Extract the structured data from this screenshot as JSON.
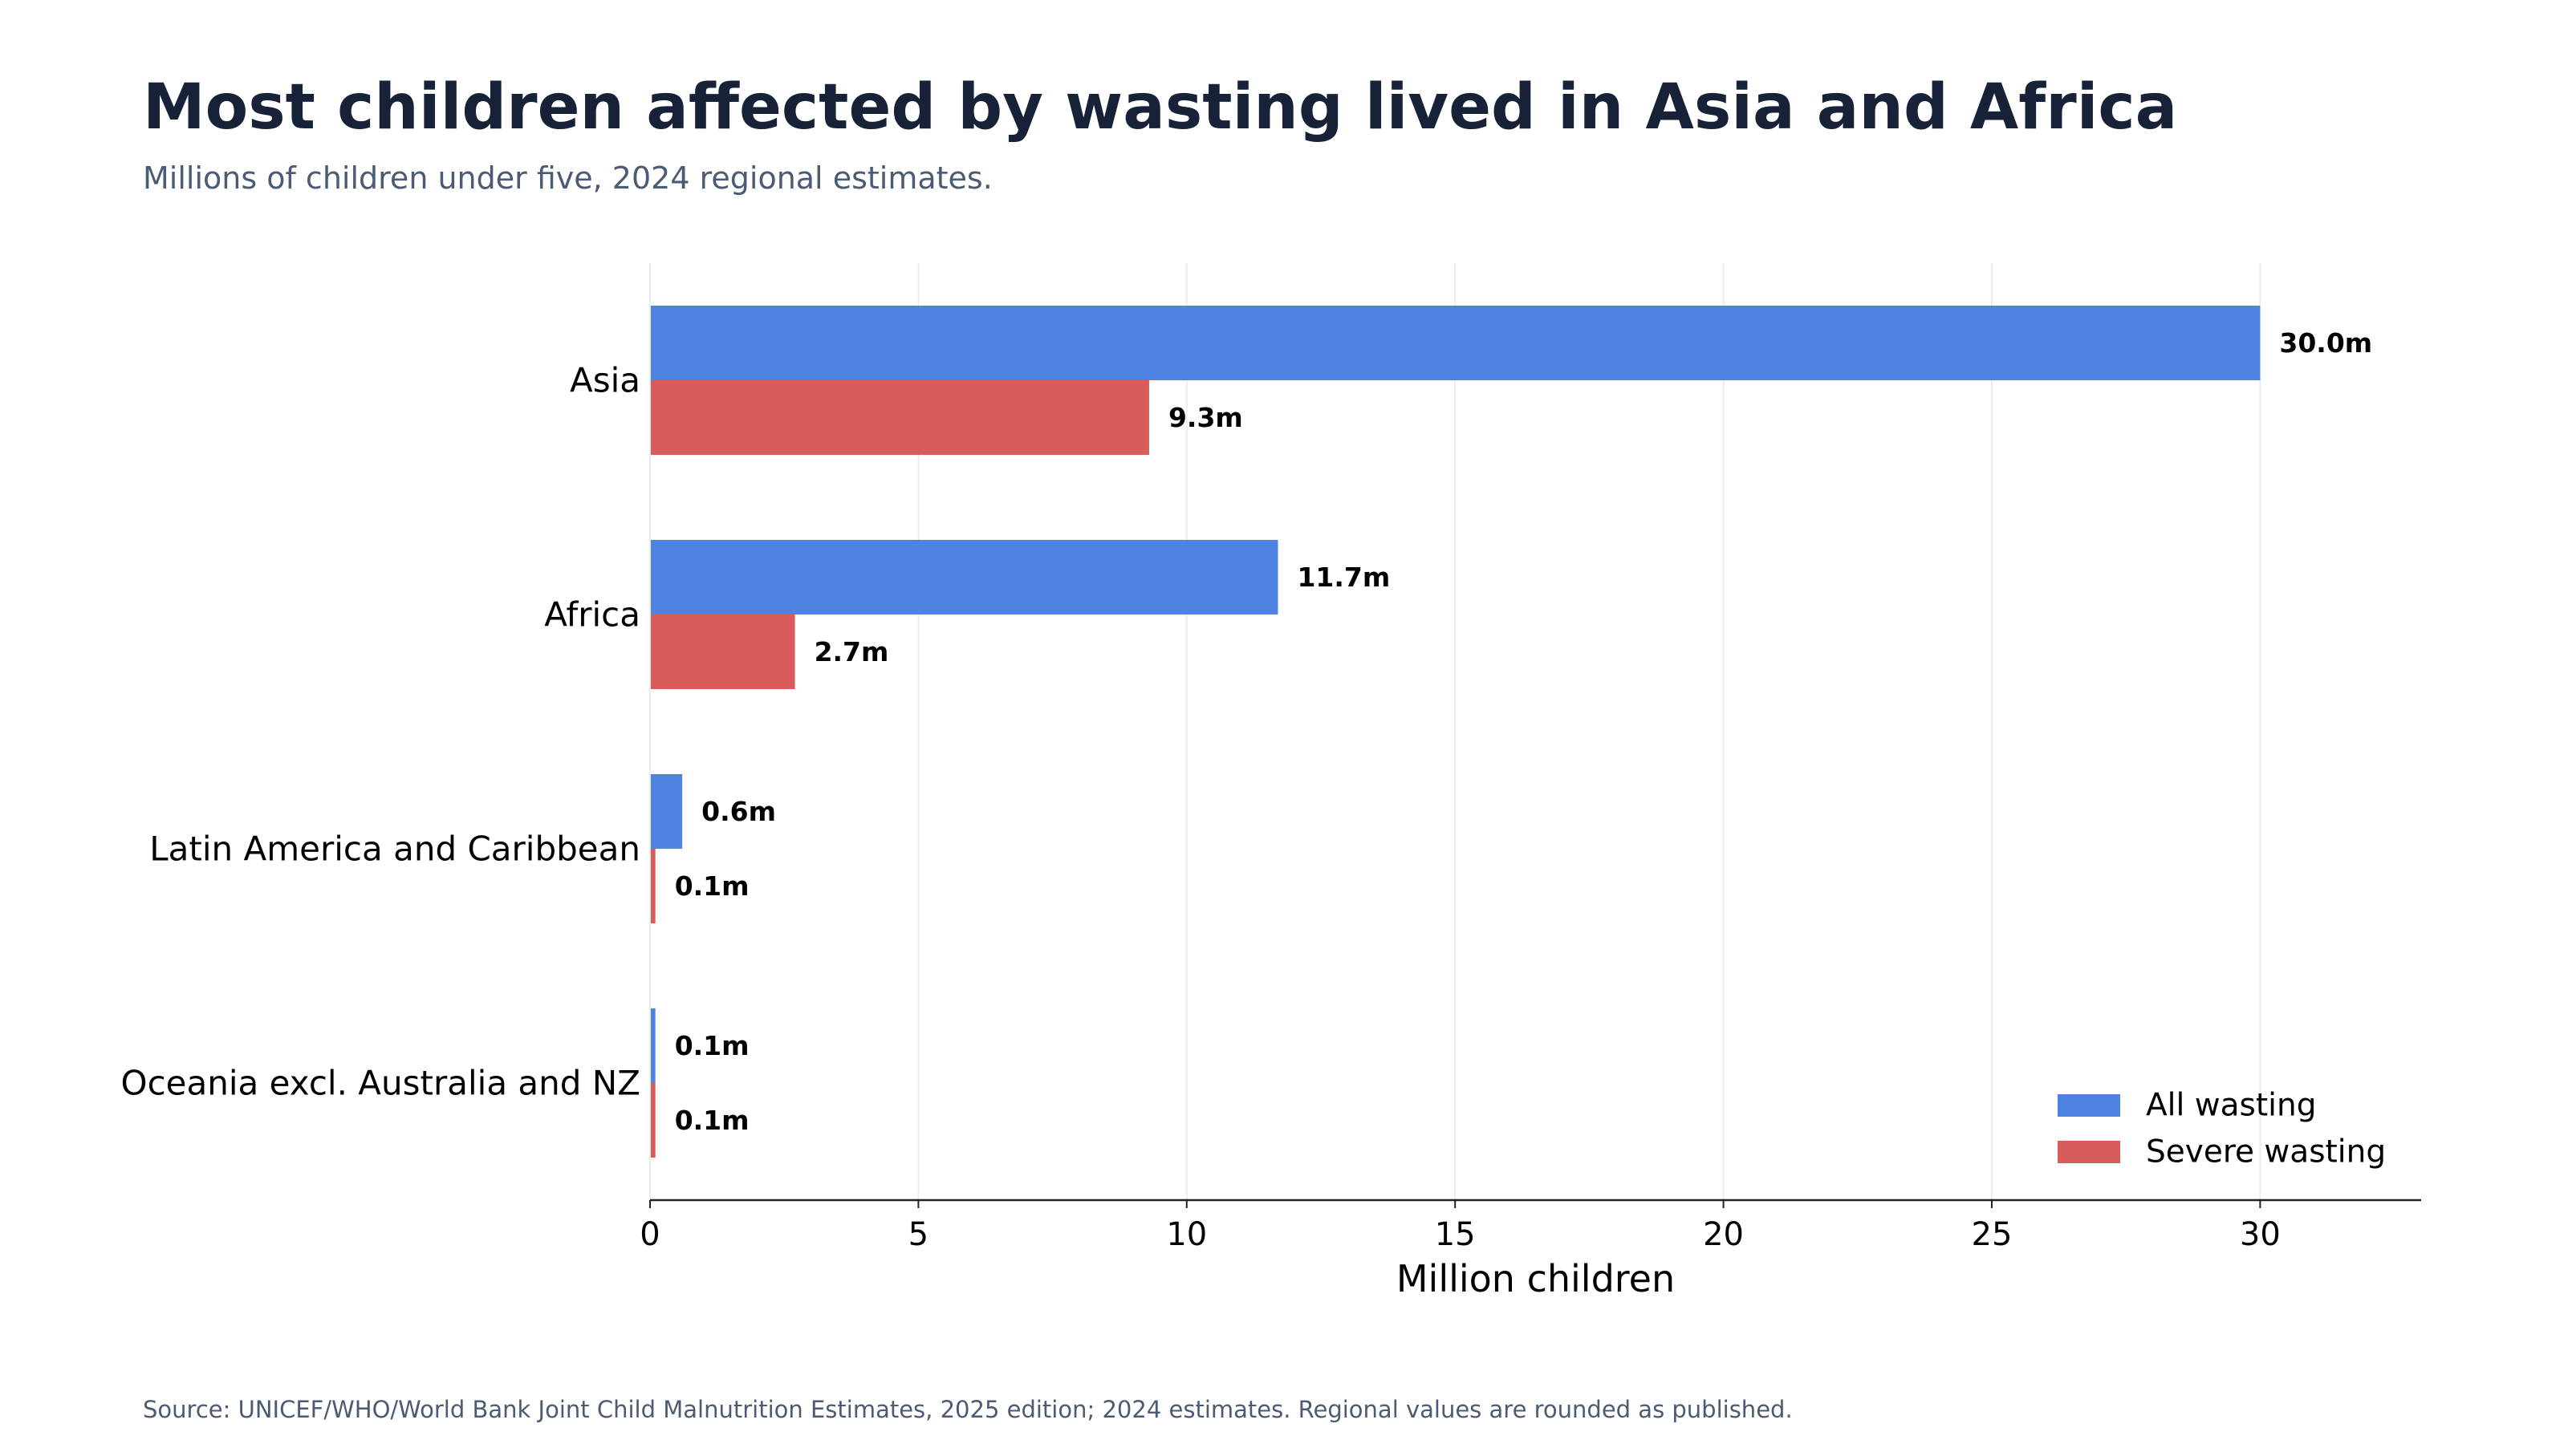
{
  "title": "Most children affected by wasting lived in Asia and Africa",
  "subtitle": "Millions of children under five, 2024 regional estimates.",
  "source": "Source: UNICEF/WHO/World Bank Joint Child Malnutrition Estimates, 2025 edition; 2024 estimates. Regional values are rounded as published.",
  "chart_data": {
    "type": "bar",
    "orientation": "horizontal",
    "title": "Most children affected by wasting lived in Asia and Africa",
    "subtitle": "Millions of children under five, 2024 regional estimates.",
    "xlabel": "Million children",
    "ylabel": "",
    "xlim": [
      0,
      33
    ],
    "x_ticks": [
      0,
      5,
      10,
      15,
      20,
      25,
      30
    ],
    "x_tick_labels": [
      "0",
      "5",
      "10",
      "15",
      "20",
      "25",
      "30"
    ],
    "categories": [
      "Asia",
      "Africa",
      "Latin America and Caribbean",
      "Oceania excl. Australia and NZ"
    ],
    "series": [
      {
        "name": "All wasting",
        "color": "#4f83e3",
        "values": [
          30.0,
          11.7,
          0.6,
          0.1
        ],
        "labels": [
          "30.0m",
          "11.7m",
          "0.6m",
          "0.1m"
        ]
      },
      {
        "name": "Severe wasting",
        "color": "#d95c5c",
        "values": [
          9.3,
          2.7,
          0.1,
          0.1
        ],
        "labels": [
          "9.3m",
          "2.7m",
          "0.1m",
          "0.1m"
        ]
      }
    ],
    "grid": "vertical",
    "legend_position": "lower-right"
  }
}
